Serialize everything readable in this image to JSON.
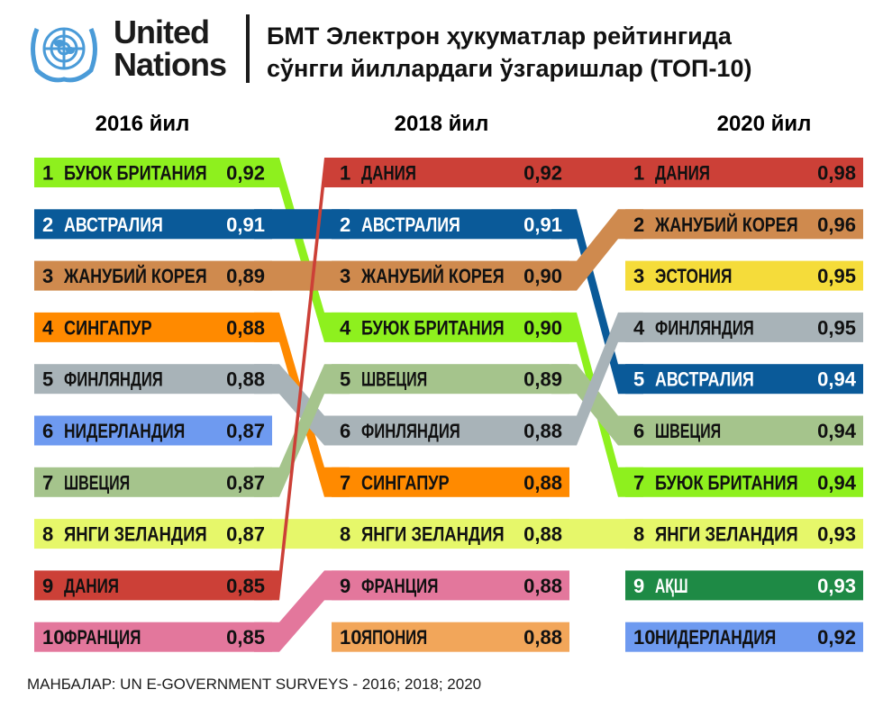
{
  "header": {
    "logo_line1": "United",
    "logo_line2": "Nations",
    "title_line1": "БМТ Электрон ҳукуматлар рейтингида",
    "title_line2": "сўнгги йиллардаги ўзгаришлар (ТОП-10)"
  },
  "source": "МАНБАЛАР: UN E-GOVERNMENT SURVEYS - 2016; 2018; 2020",
  "chart_data": {
    "type": "table",
    "title": "БМТ Электрон ҳукуматлар рейтингида сўнгги йиллардаги ўзгаришлар (ТОП-10)",
    "columns": [
      {
        "year_label": "2016 йил",
        "rows": [
          {
            "rank": "1",
            "country": "БУЮК БРИТАНИЯ",
            "value": "0,92",
            "color": "#8EF01E"
          },
          {
            "rank": "2",
            "country": "АВСТРАЛИЯ",
            "value": "0,91",
            "color": "#0A5A99"
          },
          {
            "rank": "3",
            "country": "ЖАНУБИЙ КОРЕЯ",
            "value": "0,89",
            "color": "#CF8A4E"
          },
          {
            "rank": "4",
            "country": "СИНГАПУР",
            "value": "0,88",
            "color": "#FF8A00"
          },
          {
            "rank": "5",
            "country": "ФИНЛЯНДИЯ",
            "value": "0,88",
            "color": "#A8B3B8"
          },
          {
            "rank": "6",
            "country": "НИДЕРЛАНДИЯ",
            "value": "0,87",
            "color": "#6E9AF0"
          },
          {
            "rank": "7",
            "country": "ШВЕЦИЯ",
            "value": "0,87",
            "color": "#A5C48C"
          },
          {
            "rank": "8",
            "country": "ЯНГИ ЗЕЛАНДИЯ",
            "value": "0,87",
            "color": "#E6F76A"
          },
          {
            "rank": "9",
            "country": "ДАНИЯ",
            "value": "0,85",
            "color": "#CC4037"
          },
          {
            "rank": "10",
            "country": "ФРАНЦИЯ",
            "value": "0,85",
            "color": "#E3779C"
          }
        ]
      },
      {
        "year_label": "2018 йил",
        "rows": [
          {
            "rank": "1",
            "country": "ДАНИЯ",
            "value": "0,92",
            "color": "#CC4037"
          },
          {
            "rank": "2",
            "country": "АВСТРАЛИЯ",
            "value": "0,91",
            "color": "#0A5A99"
          },
          {
            "rank": "3",
            "country": "ЖАНУБИЙ КОРЕЯ",
            "value": "0,90",
            "color": "#CF8A4E"
          },
          {
            "rank": "4",
            "country": "БУЮК БРИТАНИЯ",
            "value": "0,90",
            "color": "#8EF01E"
          },
          {
            "rank": "5",
            "country": "ШВЕЦИЯ",
            "value": "0,89",
            "color": "#A5C48C"
          },
          {
            "rank": "6",
            "country": "ФИНЛЯНДИЯ",
            "value": "0,88",
            "color": "#A8B3B8"
          },
          {
            "rank": "7",
            "country": "СИНГАПУР",
            "value": "0,88",
            "color": "#FF8A00"
          },
          {
            "rank": "8",
            "country": "ЯНГИ ЗЕЛАНДИЯ",
            "value": "0,88",
            "color": "#E6F76A"
          },
          {
            "rank": "9",
            "country": "ФРАНЦИЯ",
            "value": "0,88",
            "color": "#E3779C"
          },
          {
            "rank": "10",
            "country": "ЯПОНИЯ",
            "value": "0,88",
            "color": "#F2A65A"
          }
        ]
      },
      {
        "year_label": "2020 йил",
        "rows": [
          {
            "rank": "1",
            "country": "ДАНИЯ",
            "value": "0,98",
            "color": "#CC4037"
          },
          {
            "rank": "2",
            "country": "ЖАНУБИЙ КОРЕЯ",
            "value": "0,96",
            "color": "#CF8A4E"
          },
          {
            "rank": "3",
            "country": "ЭСТОНИЯ",
            "value": "0,95",
            "color": "#F5DC3A"
          },
          {
            "rank": "4",
            "country": "ФИНЛЯНДИЯ",
            "value": "0,95",
            "color": "#A8B3B8"
          },
          {
            "rank": "5",
            "country": "АВСТРАЛИЯ",
            "value": "0,94",
            "color": "#0A5A99"
          },
          {
            "rank": "6",
            "country": "ШВЕЦИЯ",
            "value": "0,94",
            "color": "#A5C48C"
          },
          {
            "rank": "7",
            "country": "БУЮК БРИТАНИЯ",
            "value": "0,94",
            "color": "#8EF01E"
          },
          {
            "rank": "8",
            "country": "ЯНГИ ЗЕЛАНДИЯ",
            "value": "0,93",
            "color": "#E6F76A"
          },
          {
            "rank": "9",
            "country": "АҚШ",
            "value": "0,93",
            "color": "#1E8A45"
          },
          {
            "rank": "10",
            "country": "НИДЕРЛАНДИЯ",
            "value": "0,92",
            "color": "#6E9AF0"
          }
        ]
      }
    ]
  }
}
